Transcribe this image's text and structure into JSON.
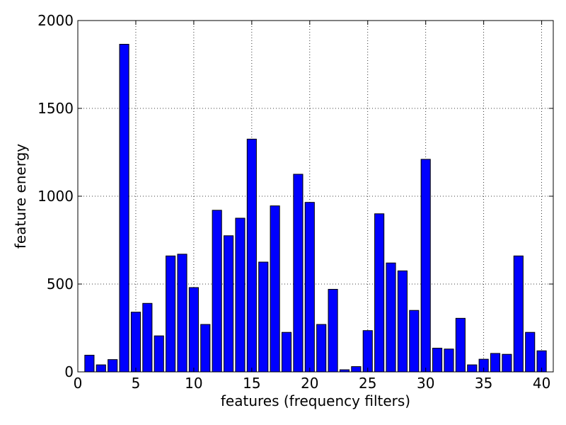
{
  "chart_data": {
    "type": "bar",
    "title": "",
    "xlabel": "features (frequency filters)",
    "ylabel": "feature energy",
    "xlim": [
      0,
      41
    ],
    "ylim": [
      0,
      2000
    ],
    "xticks": [
      0,
      5,
      10,
      15,
      20,
      25,
      30,
      35,
      40
    ],
    "yticks": [
      0,
      500,
      1000,
      1500,
      2000
    ],
    "grid": true,
    "bar_color": "#0000ff",
    "bar_edge_color": "#000000",
    "categories": [
      1,
      2,
      3,
      4,
      5,
      6,
      7,
      8,
      9,
      10,
      11,
      12,
      13,
      14,
      15,
      16,
      17,
      18,
      19,
      20,
      21,
      22,
      23,
      24,
      25,
      26,
      27,
      28,
      29,
      30,
      31,
      32,
      33,
      34,
      35,
      36,
      37,
      38,
      39,
      40
    ],
    "values": [
      95,
      40,
      70,
      1865,
      340,
      390,
      205,
      660,
      670,
      480,
      270,
      920,
      775,
      875,
      1325,
      625,
      945,
      225,
      1125,
      965,
      270,
      470,
      12,
      30,
      235,
      900,
      620,
      575,
      350,
      1210,
      135,
      130,
      305,
      40,
      72,
      105,
      100,
      660,
      225,
      120
    ]
  }
}
